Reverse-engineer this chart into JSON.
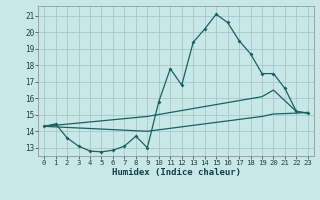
{
  "xlabel": "Humidex (Indice chaleur)",
  "x_ticks": [
    0,
    1,
    2,
    3,
    4,
    5,
    6,
    7,
    8,
    9,
    10,
    11,
    12,
    13,
    14,
    15,
    16,
    17,
    18,
    19,
    20,
    21,
    22,
    23
  ],
  "y_ticks": [
    13,
    14,
    15,
    16,
    17,
    18,
    19,
    20,
    21
  ],
  "xlim": [
    -0.5,
    23.5
  ],
  "ylim": [
    12.5,
    21.6
  ],
  "background_color": "#c8e8e8",
  "grid_color": "#a8c8c8",
  "line_color": "#1a6060",
  "line1_y": [
    14.3,
    14.45,
    13.6,
    13.1,
    12.8,
    12.75,
    12.85,
    13.1,
    13.7,
    13.0,
    15.8,
    17.8,
    16.8,
    19.4,
    20.2,
    21.1,
    20.6,
    19.5,
    18.7,
    17.5,
    17.5,
    16.6,
    15.2,
    15.1
  ],
  "line2_x": [
    0,
    9,
    19,
    20,
    22,
    23
  ],
  "line2_y": [
    14.3,
    14.9,
    16.1,
    16.5,
    15.2,
    15.1
  ],
  "line3_x": [
    0,
    9,
    19,
    20,
    22,
    23
  ],
  "line3_y": [
    14.3,
    14.0,
    14.9,
    15.05,
    15.1,
    15.15
  ],
  "marker_x": [
    0,
    1,
    2,
    3,
    4,
    5,
    6,
    7,
    8,
    9,
    10,
    11,
    12,
    13,
    14,
    15,
    16,
    17,
    18,
    19,
    20,
    21,
    22,
    23
  ],
  "figsize": [
    3.2,
    2.0
  ],
  "dpi": 100
}
